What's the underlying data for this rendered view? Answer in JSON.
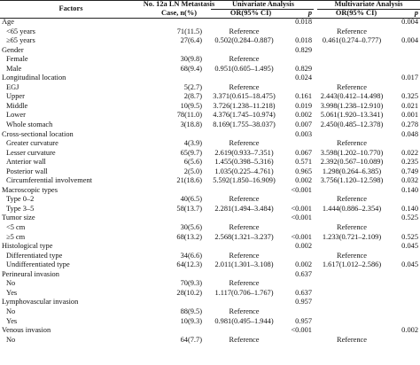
{
  "header": {
    "factors": "Factors",
    "cases": "No. 12a LN Metastasis Case, n(%)",
    "univariate": "Univariate Analysis",
    "multivariate": "Multivariate Analysis",
    "or_ci": "OR(95% CI)",
    "p": "p"
  },
  "rows": [
    {
      "label": "Age",
      "n": "",
      "uor": "",
      "up": "0.018",
      "mor": "",
      "mp": "0.004",
      "indent": false
    },
    {
      "label": "<65 years",
      "n": "71(11.5)",
      "uor": "Reference",
      "up": "",
      "mor": "Reference",
      "mp": "",
      "indent": true
    },
    {
      "label": "≥65 years",
      "n": "27(6.4)",
      "uor": "0.502(0.284–0.887)",
      "up": "0.018",
      "mor": "0.461(0.274–0.777)",
      "mp": "0.004",
      "indent": true
    },
    {
      "label": "Gender",
      "n": "",
      "uor": "",
      "up": "0.829",
      "mor": "",
      "mp": "",
      "indent": false
    },
    {
      "label": "Female",
      "n": "30(9.8)",
      "uor": "Reference",
      "up": "",
      "mor": "",
      "mp": "",
      "indent": true
    },
    {
      "label": "Male",
      "n": "68(9.4)",
      "uor": "0.951(0.605–1.495)",
      "up": "0.829",
      "mor": "",
      "mp": "",
      "indent": true
    },
    {
      "label": "Longitudinal location",
      "n": "",
      "uor": "",
      "up": "0.024",
      "mor": "",
      "mp": "0.017",
      "indent": false
    },
    {
      "label": "EGJ",
      "n": "5(2.7)",
      "uor": "Reference",
      "up": "",
      "mor": "Reference",
      "mp": "",
      "indent": true
    },
    {
      "label": "Upper",
      "n": "2(8.7)",
      "uor": "3.371(0.615–18.475)",
      "up": "0.161",
      "mor": "2.443(0.412–14.498)",
      "mp": "0.325",
      "indent": true
    },
    {
      "label": "Middle",
      "n": "10(9.5)",
      "uor": "3.726(1.238–11.218)",
      "up": "0.019",
      "mor": "3.998(1.238–12.910)",
      "mp": "0.021",
      "indent": true
    },
    {
      "label": "Lower",
      "n": "78(11.0)",
      "uor": "4.376(1.745–10.974)",
      "up": "0.002",
      "mor": "5.061(1.920–13.341)",
      "mp": "0.001",
      "indent": true
    },
    {
      "label": "Whole stomach",
      "n": "3(18.8)",
      "uor": "8.169(1.755–38.037)",
      "up": "0.007",
      "mor": "2.450(0.485–12.378)",
      "mp": "0.278",
      "indent": true
    },
    {
      "label": "Cross-sectional location",
      "n": "",
      "uor": "",
      "up": "0.003",
      "mor": "",
      "mp": "0.048",
      "indent": false
    },
    {
      "label": "Greater curvature",
      "n": "4(3.9)",
      "uor": "Reference",
      "up": "",
      "mor": "Reference",
      "mp": "",
      "indent": true
    },
    {
      "label": "Lesser curvature",
      "n": "65(9.7)",
      "uor": "2.619(0.933–7.351)",
      "up": "0.067",
      "mor": "3.598(1.202–10.770)",
      "mp": "0.022",
      "indent": true
    },
    {
      "label": "Anterior wall",
      "n": "6(5.6)",
      "uor": "1.455(0.398–5.316)",
      "up": "0.571",
      "mor": "2.392(0.567–10.089)",
      "mp": "0.235",
      "indent": true
    },
    {
      "label": "Posterior wall",
      "n": "2(5.0)",
      "uor": "1.035(0.225–4.761)",
      "up": "0.965",
      "mor": "1.298(0.264–6.385)",
      "mp": "0.749",
      "indent": true
    },
    {
      "label": "Circumferential involvement",
      "n": "21(18.6)",
      "uor": "5.592(1.850–16.909)",
      "up": "0.002",
      "mor": "3.756(1.120–12.598)",
      "mp": "0.032",
      "indent": true
    },
    {
      "label": "Macroscopic types",
      "n": "",
      "uor": "",
      "up": "<0.001",
      "mor": "",
      "mp": "0.140",
      "indent": false
    },
    {
      "label": "Type 0–2",
      "n": "40(6.5)",
      "uor": "Reference",
      "up": "",
      "mor": "Reference",
      "mp": "",
      "indent": true
    },
    {
      "label": "Type 3–5",
      "n": "58(13.7)",
      "uor": "2.281(1.494–3.484)",
      "up": "<0.001",
      "mor": "1.444(0.886–2.354)",
      "mp": "0.140",
      "indent": true
    },
    {
      "label": "Tumor size",
      "n": "",
      "uor": "",
      "up": "<0.001",
      "mor": "",
      "mp": "0.525",
      "indent": false
    },
    {
      "label": "<5 cm",
      "n": "30(5.6)",
      "uor": "Reference",
      "up": "",
      "mor": "Reference",
      "mp": "",
      "indent": true
    },
    {
      "label": "≥5 cm",
      "n": "68(13.2)",
      "uor": "2.568(1.321–3.237)",
      "up": "<0.001",
      "mor": "1.233(0.721–2.109)",
      "mp": "0.525",
      "indent": true
    },
    {
      "label": "Histological type",
      "n": "",
      "uor": "",
      "up": "0.002",
      "mor": "",
      "mp": "0.045",
      "indent": false
    },
    {
      "label": "Differentiated type",
      "n": "34(6.6)",
      "uor": "Reference",
      "up": "",
      "mor": "Reference",
      "mp": "",
      "indent": true
    },
    {
      "label": "Undifferentiated type",
      "n": "64(12.3)",
      "uor": "2.011(1.301–3.108)",
      "up": "0.002",
      "mor": "1.617(1.012–2.586)",
      "mp": "0.045",
      "indent": true
    },
    {
      "label": "Perineural invasion",
      "n": "",
      "uor": "",
      "up": "0.637",
      "mor": "",
      "mp": "",
      "indent": false
    },
    {
      "label": "No",
      "n": "70(9.3)",
      "uor": "Reference",
      "up": "",
      "mor": "",
      "mp": "",
      "indent": true
    },
    {
      "label": "Yes",
      "n": "28(10.2)",
      "uor": "1.117(0.706–1.767)",
      "up": "0.637",
      "mor": "",
      "mp": "",
      "indent": true
    },
    {
      "label": "Lymphovascular invasion",
      "n": "",
      "uor": "",
      "up": "0.957",
      "mor": "",
      "mp": "",
      "indent": false
    },
    {
      "label": "No",
      "n": "88(9.5)",
      "uor": "Reference",
      "up": "",
      "mor": "",
      "mp": "",
      "indent": true
    },
    {
      "label": "Yes",
      "n": "10(9.3)",
      "uor": "0.981(0.495–1.944)",
      "up": "0.957",
      "mor": "",
      "mp": "",
      "indent": true
    },
    {
      "label": "Venous invasion",
      "n": "",
      "uor": "",
      "up": "<0.001",
      "mor": "",
      "mp": "0.002",
      "indent": false
    },
    {
      "label": "No",
      "n": "64(7.7)",
      "uor": "Reference",
      "up": "",
      "mor": "Reference",
      "mp": "",
      "indent": true
    }
  ]
}
